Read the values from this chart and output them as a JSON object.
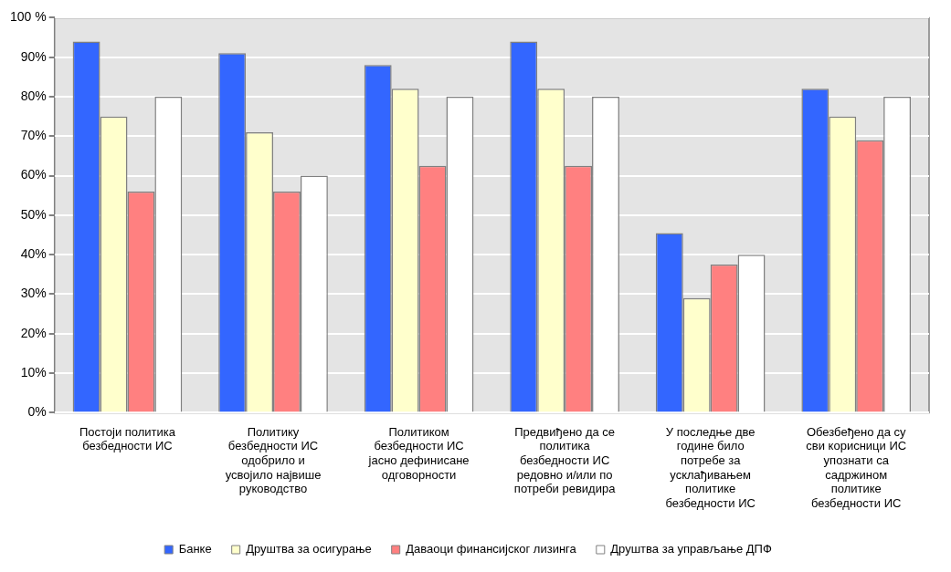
{
  "chart_data": {
    "type": "bar",
    "categories": [
      "Постоји политика\nбезбедности ИС",
      "Политику\nбезбедности ИС\nодобрило и\nусвојило највише\nруководство",
      "Политиком\nбезбедности ИС\nјасно дефинисане\nодговорности",
      "Предвиђено да се\nполитика\nбезбедности ИС\nредовно и/или по\nпотреби ревидира",
      "У последње две\nгодине било\nпотребе за\nусклађивањем\nполитике\nбезбедности ИС",
      "Обезбеђено да су\nсви корисници ИС\nупознати са\nсадржином\nполитике\nбезбедности ИС"
    ],
    "series": [
      {
        "name": "Банке",
        "color": "#3366ff",
        "values": [
          94,
          91,
          88,
          94,
          45.5,
          82
        ]
      },
      {
        "name": "Друштва за осигурање",
        "color": "#ffffcc",
        "values": [
          75,
          71,
          82,
          82,
          29,
          75
        ]
      },
      {
        "name": "Даваоци финансијског лизинга",
        "color": "#ff8080",
        "values": [
          56,
          56,
          62.5,
          62.5,
          37.5,
          69
        ]
      },
      {
        "name": "Друштва за управљање ДПФ",
        "color": "#ffffff",
        "values": [
          80,
          60,
          80,
          80,
          40,
          80
        ]
      }
    ],
    "ylim": [
      0,
      100
    ],
    "yticks": [
      {
        "value": 0,
        "label": "0%"
      },
      {
        "value": 10,
        "label": "10%"
      },
      {
        "value": 20,
        "label": "20%"
      },
      {
        "value": 30,
        "label": "30%"
      },
      {
        "value": 40,
        "label": "40%"
      },
      {
        "value": 50,
        "label": "50%"
      },
      {
        "value": 60,
        "label": "60%"
      },
      {
        "value": 70,
        "label": "70%"
      },
      {
        "value": 80,
        "label": "80%"
      },
      {
        "value": 90,
        "label": "90%"
      },
      {
        "value": 100,
        "label": "100 %"
      }
    ],
    "grid": "y",
    "legend": "bottom"
  }
}
